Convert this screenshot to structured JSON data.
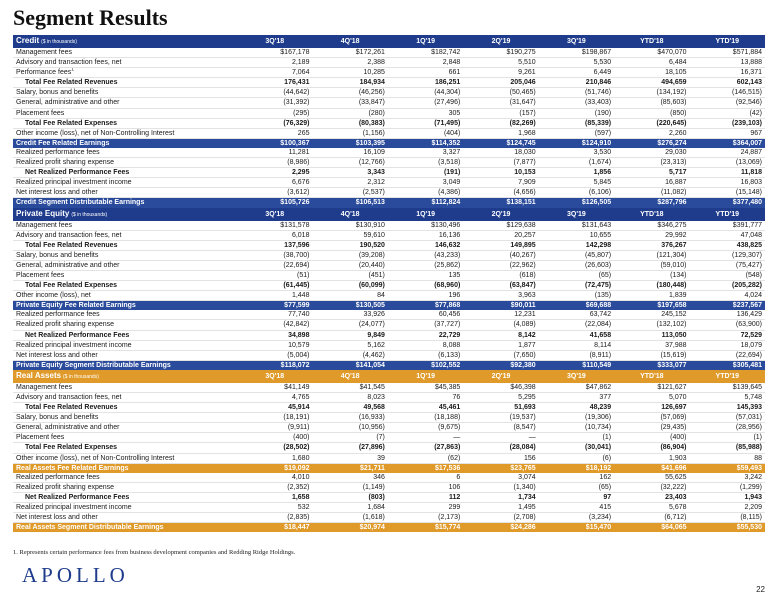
{
  "title": "Segment Results",
  "periods": [
    "3Q'18",
    "4Q'18",
    "1Q'19",
    "2Q'19",
    "3Q'19",
    "YTD'18",
    "YTD'19"
  ],
  "sections": [
    {
      "theme": "blue",
      "name": "Credit",
      "unit": "($ in thousands)",
      "rows": [
        {
          "label": "Management fees",
          "values": [
            "$167,178",
            "$172,261",
            "$182,742",
            "$190,275",
            "$198,867",
            "$470,070",
            "$571,884"
          ],
          "type": "row"
        },
        {
          "label": "Advisory and transaction fees, net",
          "values": [
            "2,189",
            "2,388",
            "2,848",
            "5,510",
            "5,530",
            "6,484",
            "13,888"
          ],
          "type": "row"
        },
        {
          "label": "Performance fees",
          "sup": "1",
          "values": [
            "7,064",
            "10,285",
            "661",
            "9,261",
            "6,449",
            "18,105",
            "16,371"
          ],
          "type": "row"
        },
        {
          "label": "Total Fee Related Revenues",
          "values": [
            "176,431",
            "184,934",
            "186,251",
            "205,046",
            "210,846",
            "494,659",
            "602,143"
          ],
          "type": "total"
        },
        {
          "label": "Salary, bonus and benefits",
          "values": [
            "(44,642)",
            "(46,256)",
            "(44,304)",
            "(50,465)",
            "(51,746)",
            "(134,192)",
            "(146,515)"
          ],
          "type": "row"
        },
        {
          "label": "General, administrative and other",
          "values": [
            "(31,392)",
            "(33,847)",
            "(27,496)",
            "(31,647)",
            "(33,403)",
            "(85,603)",
            "(92,546)"
          ],
          "type": "row"
        },
        {
          "label": "Placement fees",
          "values": [
            "(295)",
            "(280)",
            "305",
            "(157)",
            "(190)",
            "(850)",
            "(42)"
          ],
          "type": "row"
        },
        {
          "label": "Total Fee Related Expenses",
          "values": [
            "(76,329)",
            "(80,383)",
            "(71,495)",
            "(82,269)",
            "(85,339)",
            "(220,645)",
            "(239,103)"
          ],
          "type": "total"
        },
        {
          "label": "Other income (loss), net of Non-Controlling Interest",
          "values": [
            "265",
            "(1,156)",
            "(404)",
            "1,968",
            "(597)",
            "2,260",
            "967"
          ],
          "type": "row"
        },
        {
          "label": "Credit Fee Related Earnings",
          "values": [
            "$100,367",
            "$103,395",
            "$114,352",
            "$124,745",
            "$124,910",
            "$276,274",
            "$364,007"
          ],
          "type": "sub"
        },
        {
          "label": "Realized performance fees",
          "values": [
            "11,281",
            "16,109",
            "3,327",
            "18,030",
            "3,530",
            "29,030",
            "24,887"
          ],
          "type": "row"
        },
        {
          "label": "Realized profit sharing expense",
          "values": [
            "(8,986)",
            "(12,766)",
            "(3,518)",
            "(7,877)",
            "(1,674)",
            "(23,313)",
            "(13,069)"
          ],
          "type": "row"
        },
        {
          "label": "Net Realized Performance Fees",
          "values": [
            "2,295",
            "3,343",
            "(191)",
            "10,153",
            "1,856",
            "5,717",
            "11,818"
          ],
          "type": "total"
        },
        {
          "label": "Realized principal investment income",
          "values": [
            "6,676",
            "2,312",
            "3,049",
            "7,909",
            "5,845",
            "16,887",
            "16,803"
          ],
          "type": "row"
        },
        {
          "label": "Net interest loss and other",
          "values": [
            "(3,612)",
            "(2,537)",
            "(4,386)",
            "(4,656)",
            "(6,106)",
            "(11,082)",
            "(15,148)"
          ],
          "type": "row"
        },
        {
          "label": "Credit Segment Distributable Earnings",
          "values": [
            "$105,726",
            "$106,513",
            "$112,824",
            "$138,151",
            "$126,505",
            "$287,796",
            "$377,480"
          ],
          "type": "sub-last"
        }
      ]
    },
    {
      "theme": "blue",
      "name": "Private Equity",
      "unit": "($ in thousands)",
      "rows": [
        {
          "label": "Management fees",
          "values": [
            "$131,578",
            "$130,910",
            "$130,496",
            "$129,638",
            "$131,643",
            "$346,275",
            "$391,777"
          ],
          "type": "row"
        },
        {
          "label": "Advisory and transaction fees, net",
          "values": [
            "6,018",
            "59,610",
            "16,136",
            "20,257",
            "10,655",
            "29,992",
            "47,048"
          ],
          "type": "row"
        },
        {
          "label": "Total Fee Related Revenues",
          "values": [
            "137,596",
            "190,520",
            "146,632",
            "149,895",
            "142,298",
            "376,267",
            "438,825"
          ],
          "type": "total"
        },
        {
          "label": "Salary, bonus and benefits",
          "values": [
            "(38,700)",
            "(39,208)",
            "(43,233)",
            "(40,267)",
            "(45,807)",
            "(121,304)",
            "(129,307)"
          ],
          "type": "row"
        },
        {
          "label": "General, administrative and other",
          "values": [
            "(22,694)",
            "(20,440)",
            "(25,862)",
            "(22,962)",
            "(26,603)",
            "(59,010)",
            "(75,427)"
          ],
          "type": "row"
        },
        {
          "label": "Placement fees",
          "values": [
            "(51)",
            "(451)",
            "135",
            "(618)",
            "(65)",
            "(134)",
            "(548)"
          ],
          "type": "row"
        },
        {
          "label": "Total Fee Related Expenses",
          "values": [
            "(61,445)",
            "(60,099)",
            "(68,960)",
            "(63,847)",
            "(72,475)",
            "(180,448)",
            "(205,282)"
          ],
          "type": "total"
        },
        {
          "label": "Other income (loss), net",
          "values": [
            "1,448",
            "84",
            "196",
            "3,963",
            "(135)",
            "1,839",
            "4,024"
          ],
          "type": "row"
        },
        {
          "label": "Private Equity Fee Related Earnings",
          "values": [
            "$77,599",
            "$130,505",
            "$77,868",
            "$90,011",
            "$69,688",
            "$197,658",
            "$237,567"
          ],
          "type": "sub"
        },
        {
          "label": "Realized performance fees",
          "values": [
            "77,740",
            "33,926",
            "60,456",
            "12,231",
            "63,742",
            "245,152",
            "136,429"
          ],
          "type": "row"
        },
        {
          "label": "Realized profit sharing expense",
          "values": [
            "(42,842)",
            "(24,077)",
            "(37,727)",
            "(4,089)",
            "(22,084)",
            "(132,102)",
            "(63,900)"
          ],
          "type": "row"
        },
        {
          "label": "Net Realized Performance Fees",
          "values": [
            "34,898",
            "9,849",
            "22,729",
            "8,142",
            "41,658",
            "113,050",
            "72,529"
          ],
          "type": "total"
        },
        {
          "label": "Realized principal investment income",
          "values": [
            "10,579",
            "5,162",
            "8,088",
            "1,877",
            "8,114",
            "37,988",
            "18,079"
          ],
          "type": "row"
        },
        {
          "label": "Net interest loss and other",
          "values": [
            "(5,004)",
            "(4,462)",
            "(6,133)",
            "(7,650)",
            "(8,911)",
            "(15,619)",
            "(22,694)"
          ],
          "type": "row"
        },
        {
          "label": "Private Equity Segment Distributable Earnings",
          "values": [
            "$118,072",
            "$141,054",
            "$102,552",
            "$92,380",
            "$110,549",
            "$333,077",
            "$305,481"
          ],
          "type": "sub-last"
        }
      ]
    },
    {
      "theme": "orange",
      "name": "Real Assets",
      "unit": "($ in thousands)",
      "rows": [
        {
          "label": "Management fees",
          "values": [
            "$41,149",
            "$41,545",
            "$45,385",
            "$46,398",
            "$47,862",
            "$121,627",
            "$139,645"
          ],
          "type": "row"
        },
        {
          "label": "Advisory and transaction fees, net",
          "values": [
            "4,765",
            "8,023",
            "76",
            "5,295",
            "377",
            "5,070",
            "5,748"
          ],
          "type": "row"
        },
        {
          "label": "Total Fee Related Revenues",
          "values": [
            "45,914",
            "49,568",
            "45,461",
            "51,693",
            "48,239",
            "126,697",
            "145,393"
          ],
          "type": "total"
        },
        {
          "label": "Salary, bonus and benefits",
          "values": [
            "(18,191)",
            "(16,933)",
            "(18,188)",
            "(19,537)",
            "(19,306)",
            "(57,069)",
            "(57,031)"
          ],
          "type": "row"
        },
        {
          "label": "General, administrative and other",
          "values": [
            "(9,911)",
            "(10,956)",
            "(9,675)",
            "(8,547)",
            "(10,734)",
            "(29,435)",
            "(28,956)"
          ],
          "type": "row"
        },
        {
          "label": "Placement fees",
          "values": [
            "(400)",
            "(7)",
            "—",
            "—",
            "(1)",
            "(400)",
            "(1)"
          ],
          "type": "row"
        },
        {
          "label": "Total Fee Related Expenses",
          "values": [
            "(28,502)",
            "(27,896)",
            "(27,863)",
            "(28,084)",
            "(30,041)",
            "(86,904)",
            "(85,988)"
          ],
          "type": "total"
        },
        {
          "label": "Other income (loss), net of Non-Controlling Interest",
          "values": [
            "1,680",
            "39",
            "(62)",
            "156",
            "(6)",
            "1,903",
            "88"
          ],
          "type": "row"
        },
        {
          "label": "Real Assets Fee Related Earnings",
          "values": [
            "$19,092",
            "$21,711",
            "$17,536",
            "$23,765",
            "$18,192",
            "$41,696",
            "$59,493"
          ],
          "type": "sub"
        },
        {
          "label": "Realized performance fees",
          "values": [
            "4,010",
            "346",
            "6",
            "3,074",
            "162",
            "55,625",
            "3,242"
          ],
          "type": "row"
        },
        {
          "label": "Realized profit sharing expense",
          "values": [
            "(2,352)",
            "(1,149)",
            "106",
            "(1,340)",
            "(65)",
            "(32,222)",
            "(1,299)"
          ],
          "type": "row"
        },
        {
          "label": "Net Realized Performance Fees",
          "values": [
            "1,658",
            "(803)",
            "112",
            "1,734",
            "97",
            "23,403",
            "1,943"
          ],
          "type": "total"
        },
        {
          "label": "Realized principal investment income",
          "values": [
            "532",
            "1,684",
            "299",
            "1,495",
            "415",
            "5,678",
            "2,209"
          ],
          "type": "row"
        },
        {
          "label": "Net interest loss and other",
          "values": [
            "(2,835)",
            "(1,618)",
            "(2,173)",
            "(2,708)",
            "(3,234)",
            "(6,712)",
            "(8,115)"
          ],
          "type": "row"
        },
        {
          "label": "Real Assets Segment Distributable Earnings",
          "values": [
            "$18,447",
            "$20,974",
            "$15,774",
            "$24,286",
            "$15,470",
            "$64,065",
            "$55,530"
          ],
          "type": "sub-last"
        }
      ]
    }
  ],
  "footnote": "1. Represents certain performance fees from business development companies and Redding Ridge Holdings.",
  "logo": "APOLLO",
  "page_number": "22",
  "colors": {
    "blue": "#1f3c8c",
    "orange": "#e09a2a"
  }
}
